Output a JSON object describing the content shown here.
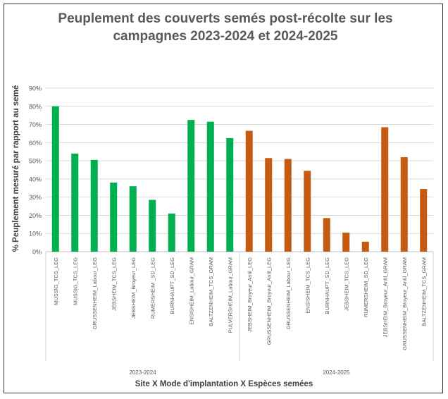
{
  "chart_data": {
    "type": "bar",
    "title": "Peuplement des couverts semés post-récolte sur les campagnes 2023-2024 et 2024-2025",
    "title_lines": [
      "Peuplement des couverts semés post-récolte sur les",
      "campagnes 2023-2024 et 2024-2025"
    ],
    "xlabel": "Site X Mode d'implantation X Espèces semées",
    "ylabel": "% Peuplement mesuré par rapport au semé",
    "ylim": [
      0,
      90
    ],
    "yticks": [
      0,
      10,
      20,
      30,
      40,
      50,
      60,
      70,
      80,
      90
    ],
    "ytick_labels": [
      "0%",
      "10%",
      "20%",
      "30%",
      "40%",
      "50%",
      "60%",
      "70%",
      "80%",
      "90%"
    ],
    "grid": true,
    "groups": [
      {
        "name": "2023-2024",
        "color": "#00B050",
        "categories": [
          "MUSSIG_TCS_LEG",
          "MUSSIG_TCS_LEG",
          "GRUSSENHEIM_Labour_LEG",
          "JEBSHEIM_TCS_LEG",
          "JEBSHEIM_Broyeur_LEG",
          "RUMERSHEIM _SD_LEG",
          "BURNHAUPT_SD_LEG",
          "ENSISHEIM_Labour_GRAM",
          "BALTZENHEIM_TCS_GRAM",
          "PULVERSHEIM_Labour_GRAM"
        ],
        "values": [
          80,
          54,
          50.5,
          38,
          36,
          28.5,
          21,
          72.5,
          71.5,
          62.5
        ]
      },
      {
        "name": "2024-2025",
        "color": "#C55A11",
        "categories": [
          "JEBSHEIM_Broyeur_Antil_LEG",
          "GRUSSENHEIM_Broyeur_Antil_LEG",
          "GRUSSENHEIM_Labour_LEG",
          "ENSISHEIM_TCS_LEG",
          "BURNHAUPT_SD_LEG",
          "JEBSHEIM_TCS_LEG",
          "RUMERSHEIM_SD_LEG",
          "JEBSHEIM_Broyeur_Antil_GRAM",
          "GRUSSENHEIM_Broyeur_Antil_GRAM",
          "BALTZENHEIM_TCS_GRAM"
        ],
        "values": [
          66.5,
          51.5,
          51,
          44.5,
          18.5,
          10.5,
          5.5,
          68.5,
          52,
          34.5
        ]
      }
    ]
  }
}
